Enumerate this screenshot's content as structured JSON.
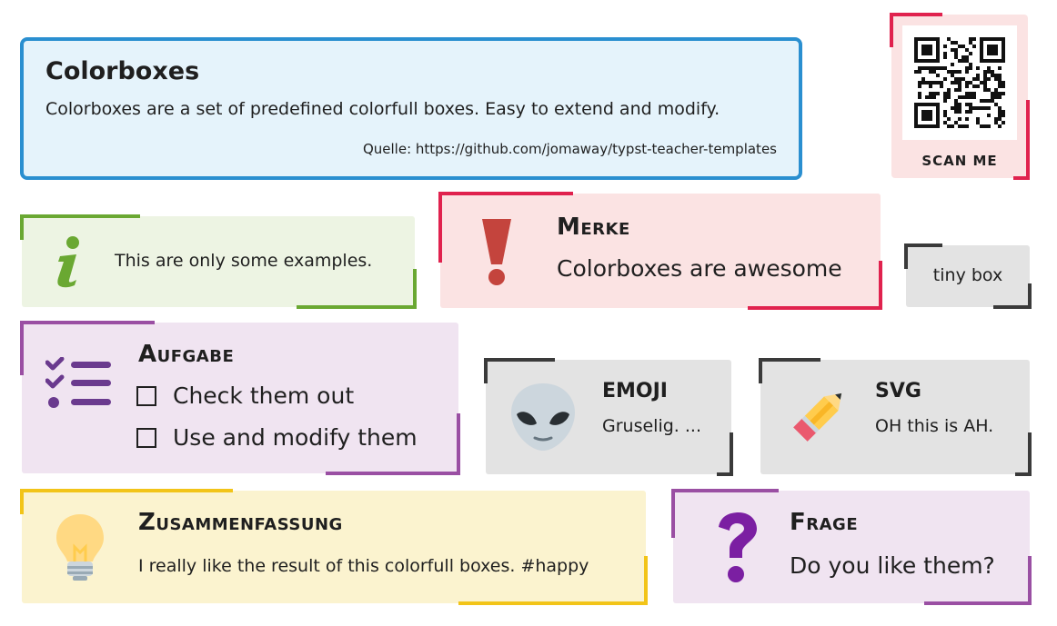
{
  "intro": {
    "title": "Colorboxes",
    "text": "Colorboxes are a set of predefined colorfull boxes. Easy to extend and modify.",
    "source": "Quelle: https://github.com/jomaway/typst-teacher-templates"
  },
  "qr": {
    "label": "SCAN ME"
  },
  "info": {
    "icon": "info-icon",
    "text": "This are only some examples."
  },
  "merke": {
    "icon": "exclamation-icon",
    "title": "Merke",
    "text": "Colorboxes are awesome"
  },
  "tiny": {
    "text": "tiny box"
  },
  "aufgabe": {
    "icon": "checklist-icon",
    "title": "Aufgabe",
    "tasks": [
      "Check them out",
      "Use and modify them"
    ]
  },
  "emoji": {
    "icon": "alien-icon",
    "title": "EMOJI",
    "text": "Gruselig. ..."
  },
  "svg": {
    "icon": "pencil-icon",
    "title": "SVG",
    "text": "OH this is AH."
  },
  "zusammenfassung": {
    "icon": "lightbulb-icon",
    "title": "Zusammenfassung",
    "text": "I really like the result of this colorfull boxes. #happy"
  },
  "frage": {
    "icon": "question-mark-icon",
    "title": "Frage",
    "text": "Do you like them?"
  },
  "colors": {
    "blue": "#2a8fd0",
    "red": "#e0224e",
    "green": "#6aa832",
    "gray": "#3a3a3a",
    "purple": "#9a4fa3",
    "yellow": "#f2c418"
  }
}
